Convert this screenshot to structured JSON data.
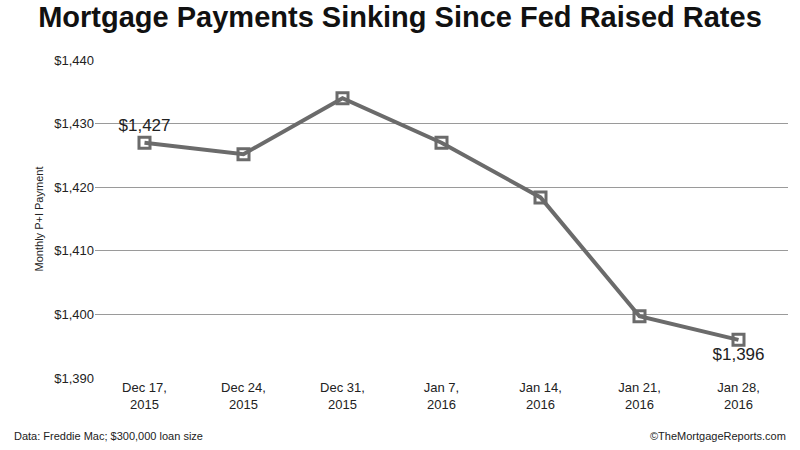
{
  "chart_data": {
    "type": "line",
    "title": "Mortgage Payments Sinking Since Fed Raised Rates",
    "y_label": "Monthly P+I Payment",
    "categories": [
      "Dec 17, 2015",
      "Dec 24, 2015",
      "Dec 31, 2015",
      "Jan 7, 2016",
      "Jan 14, 2016",
      "Jan 21, 2016",
      "Jan 28, 2016"
    ],
    "values": [
      1427,
      1425.2,
      1434,
      1427,
      1418.4,
      1399.7,
      1396
    ],
    "value_labels": [
      "$1,427",
      null,
      null,
      null,
      null,
      null,
      "$1,396"
    ],
    "data_labels": true,
    "color": "#6b6b6b",
    "marker": "square-open",
    "ylim": [
      1390,
      1440
    ],
    "yticks": [
      {
        "value": 1390,
        "label": "$1,390"
      },
      {
        "value": 1400,
        "label": "$1,400"
      },
      {
        "value": 1410,
        "label": "$1,410"
      },
      {
        "value": 1420,
        "label": "$1,420"
      },
      {
        "value": 1430,
        "label": "$1,430"
      },
      {
        "value": 1440,
        "label": "$1,440"
      }
    ],
    "grid": true,
    "annotations": [
      "Data: Freddie Mac; $300,000 loan size",
      "©TheMortgageReports.com"
    ]
  }
}
